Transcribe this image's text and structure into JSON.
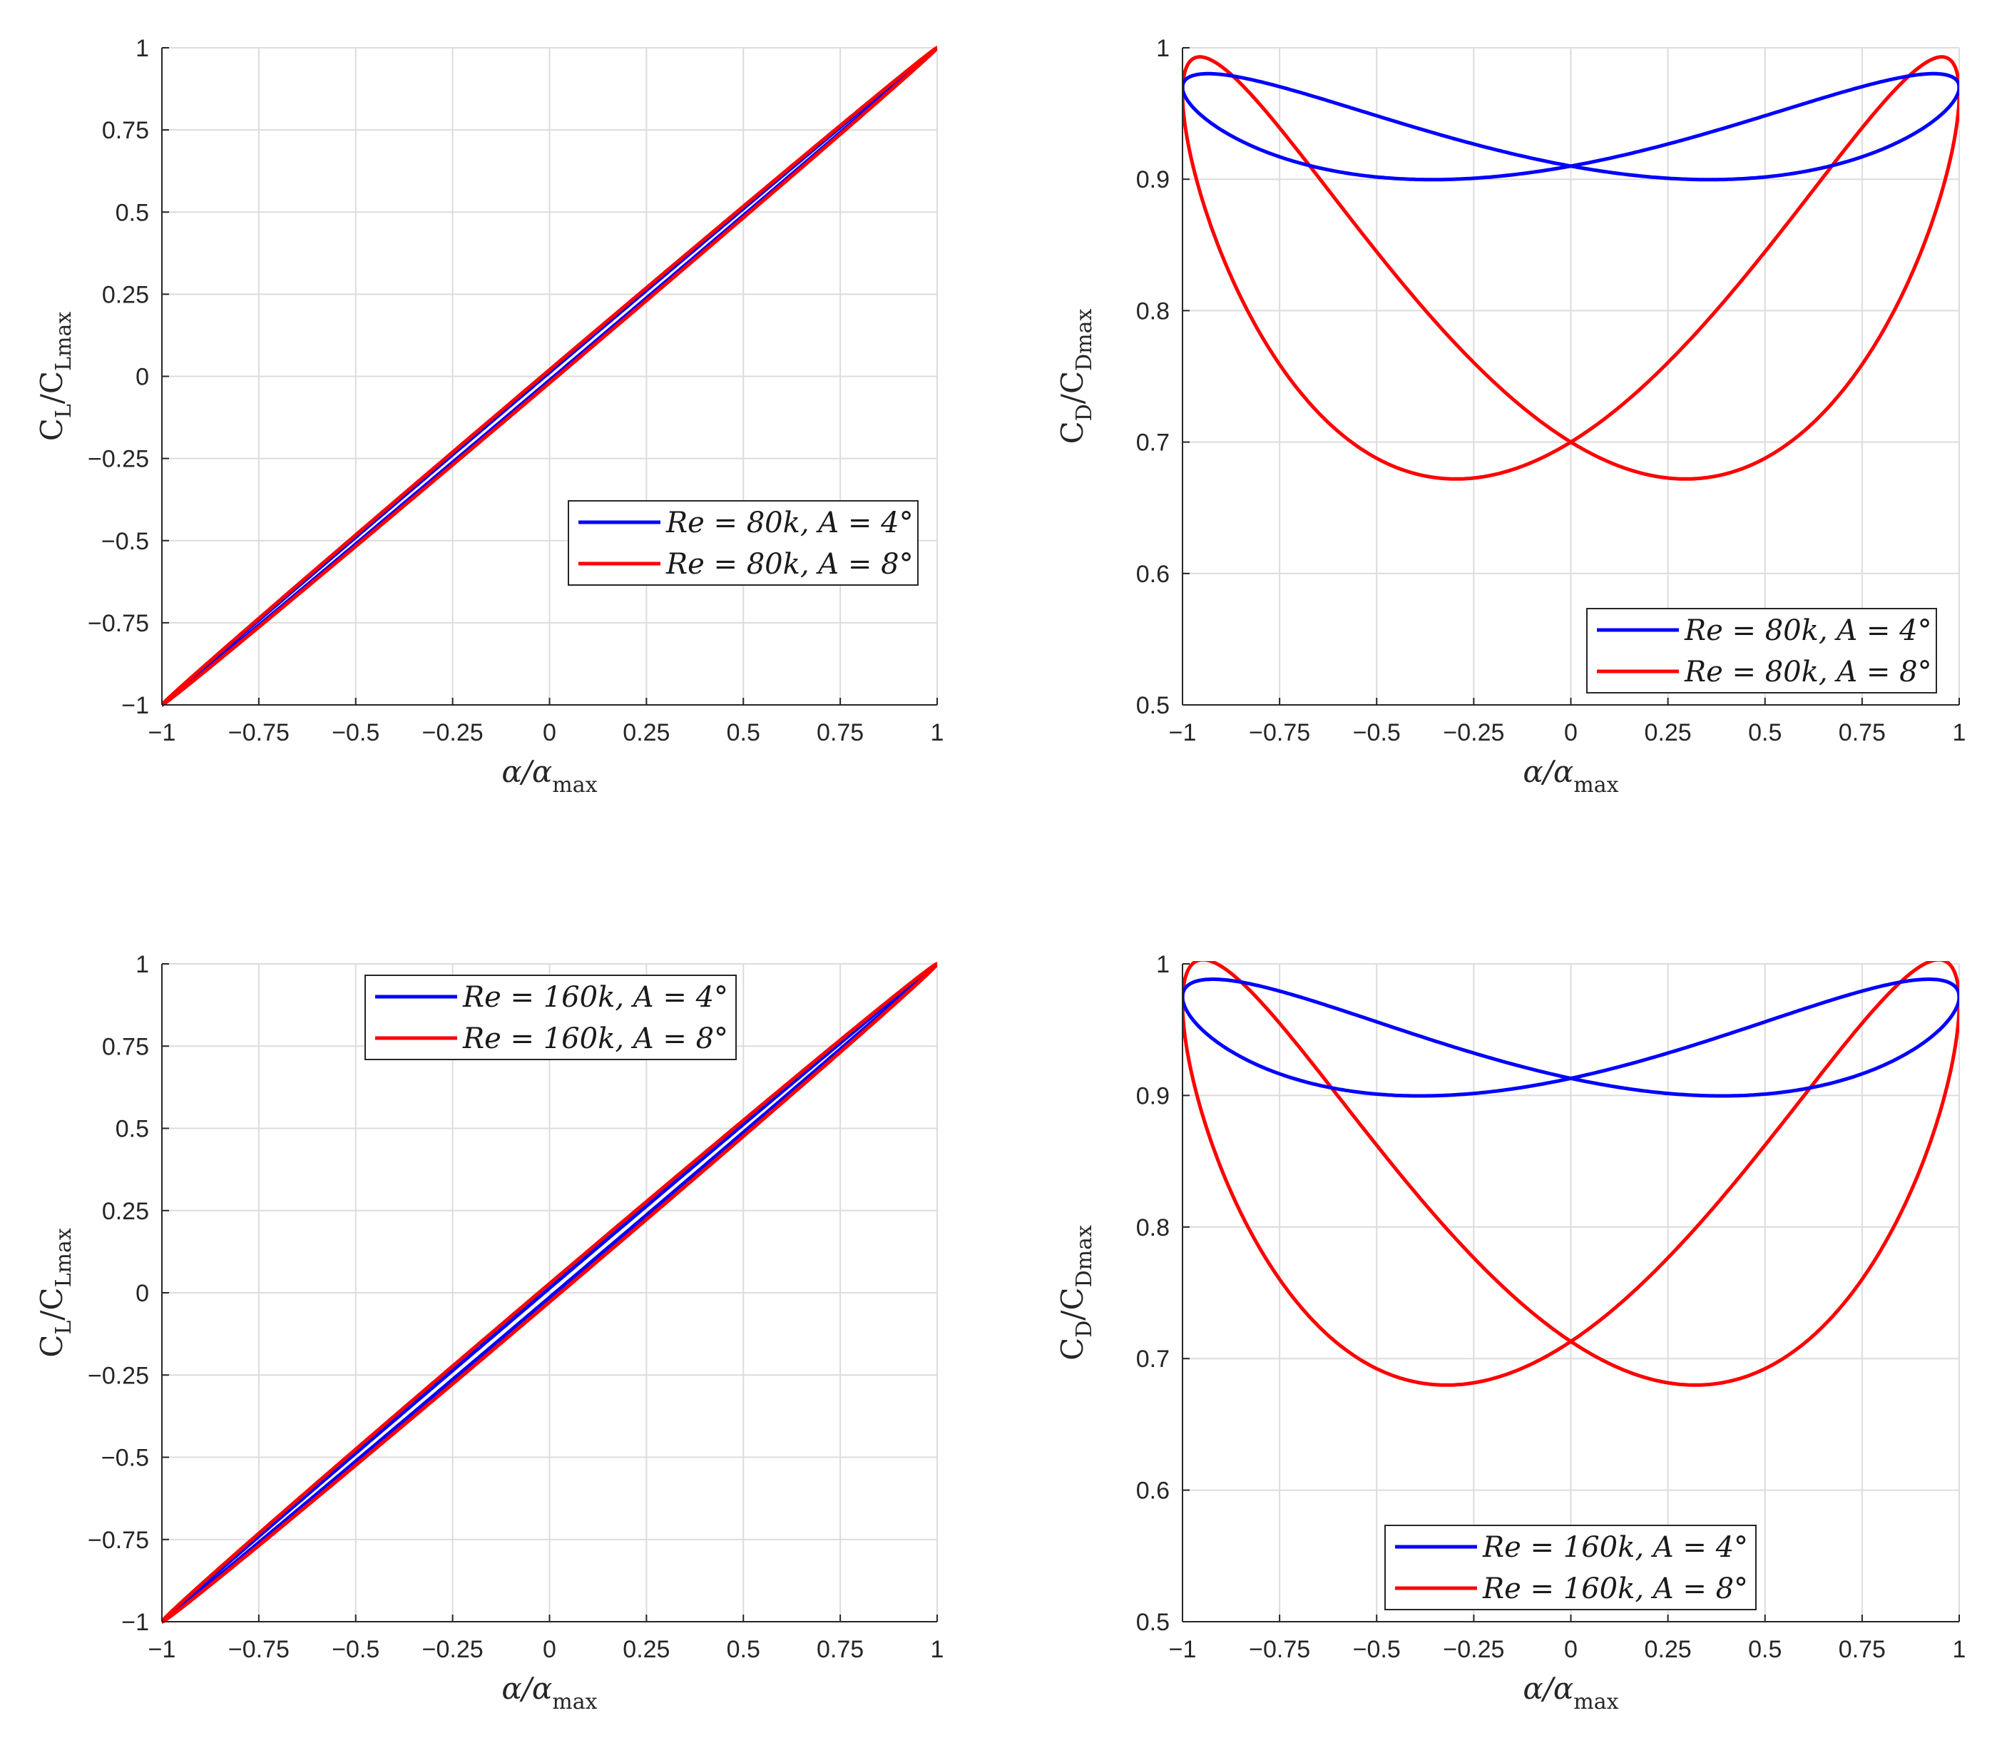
{
  "chart_data": [
    {
      "type": "line",
      "panel": "top-left",
      "xlabel": {
        "main": "α/α",
        "sub": "max"
      },
      "ylabel": {
        "main": "C",
        "sub1": "L",
        "mid": "/C",
        "sub2": "Lmax"
      },
      "xlim": [
        -1,
        1
      ],
      "ylim": [
        -1,
        1
      ],
      "xticks": [
        -1,
        -0.75,
        -0.5,
        -0.25,
        0,
        0.25,
        0.5,
        0.75,
        1
      ],
      "xtick_labels": [
        "−1",
        "−0.75",
        "−0.5",
        "−0.25",
        "0",
        "0.25",
        "0.5",
        "0.75",
        "1"
      ],
      "yticks": [
        -1,
        -0.75,
        -0.5,
        -0.25,
        0,
        0.25,
        0.5,
        0.75,
        1
      ],
      "ytick_labels": [
        "−1",
        "−0.75",
        "−0.5",
        "−0.25",
        "0",
        "0.25",
        "0.5",
        "0.75",
        "1"
      ],
      "grid": true,
      "legend": "center-right",
      "series": [
        {
          "name": "Re = 80k, A = 4°",
          "color": "#0000ff",
          "kind": "lift",
          "halfwidth": 0.012
        },
        {
          "name": "Re = 80k, A = 8°",
          "color": "#ff0000",
          "kind": "lift",
          "halfwidth": 0.02
        }
      ]
    },
    {
      "type": "line",
      "panel": "top-right",
      "xlabel": {
        "main": "α/α",
        "sub": "max"
      },
      "ylabel": {
        "main": "C",
        "sub1": "D",
        "mid": "/C",
        "sub2": "Dmax"
      },
      "xlim": [
        -1,
        1
      ],
      "ylim": [
        0.5,
        1
      ],
      "xticks": [
        -1,
        -0.75,
        -0.5,
        -0.25,
        0,
        0.25,
        0.5,
        0.75,
        1
      ],
      "xtick_labels": [
        "−1",
        "−0.75",
        "−0.5",
        "−0.25",
        "0",
        "0.25",
        "0.5",
        "0.75",
        "1"
      ],
      "yticks": [
        0.5,
        0.6,
        0.7,
        0.8,
        0.9,
        1
      ],
      "ytick_labels": [
        "0.5",
        "0.6",
        "0.7",
        "0.8",
        "0.9",
        "1"
      ],
      "grid": true,
      "legend": "bottom-right",
      "series": [
        {
          "name": "Re = 80k, A = 4°",
          "color": "#0000ff",
          "kind": "drag",
          "ymin": 0.9,
          "xmin": 0.3,
          "y0": 0.91,
          "cusp": 0.97
        },
        {
          "name": "Re = 80k, A = 8°",
          "color": "#ff0000",
          "kind": "drag",
          "ymin": 0.672,
          "xmin": 0.28,
          "y0": 0.7,
          "cusp": 0.965
        }
      ]
    },
    {
      "type": "line",
      "panel": "bottom-left",
      "xlabel": {
        "main": "α/α",
        "sub": "max"
      },
      "ylabel": {
        "main": "C",
        "sub1": "L",
        "mid": "/C",
        "sub2": "Lmax"
      },
      "xlim": [
        -1,
        1
      ],
      "ylim": [
        -1,
        1
      ],
      "xticks": [
        -1,
        -0.75,
        -0.5,
        -0.25,
        0,
        0.25,
        0.5,
        0.75,
        1
      ],
      "xtick_labels": [
        "−1",
        "−0.75",
        "−0.5",
        "−0.25",
        "0",
        "0.25",
        "0.5",
        "0.75",
        "1"
      ],
      "yticks": [
        -1,
        -0.75,
        -0.5,
        -0.25,
        0,
        0.25,
        0.5,
        0.75,
        1
      ],
      "ytick_labels": [
        "−1",
        "−0.75",
        "−0.5",
        "−0.25",
        "0",
        "0.25",
        "0.5",
        "0.75",
        "1"
      ],
      "grid": true,
      "legend": "top-center",
      "series": [
        {
          "name": "Re = 160k, A = 4°",
          "color": "#0000ff",
          "kind": "lift",
          "halfwidth": 0.014
        },
        {
          "name": "Re = 160k, A = 8°",
          "color": "#ff0000",
          "kind": "lift",
          "halfwidth": 0.028
        }
      ]
    },
    {
      "type": "line",
      "panel": "bottom-right",
      "xlabel": {
        "main": "α/α",
        "sub": "max"
      },
      "ylabel": {
        "main": "C",
        "sub1": "D",
        "mid": "/C",
        "sub2": "Dmax"
      },
      "xlim": [
        -1,
        1
      ],
      "ylim": [
        0.5,
        1
      ],
      "xticks": [
        -1,
        -0.75,
        -0.5,
        -0.25,
        0,
        0.25,
        0.5,
        0.75,
        1
      ],
      "xtick_labels": [
        "−1",
        "−0.75",
        "−0.5",
        "−0.25",
        "0",
        "0.25",
        "0.5",
        "0.75",
        "1"
      ],
      "yticks": [
        0.5,
        0.6,
        0.7,
        0.8,
        0.9,
        1
      ],
      "ytick_labels": [
        "0.5",
        "0.6",
        "0.7",
        "0.8",
        "0.9",
        "1"
      ],
      "grid": true,
      "legend": "bottom-center",
      "series": [
        {
          "name": "Re = 160k, A = 4°",
          "color": "#0000ff",
          "kind": "drag",
          "ymin": 0.9,
          "xmin": 0.33,
          "y0": 0.913,
          "cusp": 0.975
        },
        {
          "name": "Re = 160k, A = 8°",
          "color": "#ff0000",
          "kind": "drag",
          "ymin": 0.68,
          "xmin": 0.3,
          "y0": 0.713,
          "cusp": 0.97
        }
      ]
    }
  ]
}
